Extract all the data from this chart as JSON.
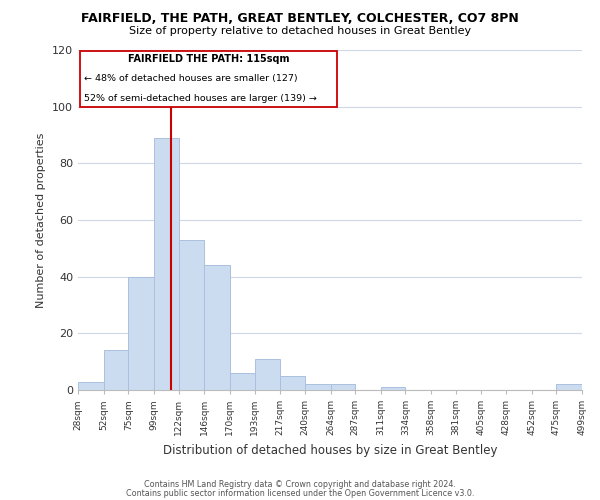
{
  "title1": "FAIRFIELD, THE PATH, GREAT BENTLEY, COLCHESTER, CO7 8PN",
  "title2": "Size of property relative to detached houses in Great Bentley",
  "xlabel": "Distribution of detached houses by size in Great Bentley",
  "ylabel": "Number of detached properties",
  "bin_edges": [
    28,
    52,
    75,
    99,
    122,
    146,
    170,
    193,
    217,
    240,
    264,
    287,
    311,
    334,
    358,
    381,
    405,
    428,
    452,
    475,
    499
  ],
  "bar_heights": [
    3,
    14,
    40,
    89,
    53,
    44,
    6,
    11,
    5,
    2,
    2,
    0,
    1,
    0,
    0,
    0,
    0,
    0,
    0,
    2
  ],
  "bar_color": "#ccdcf0",
  "bar_edge_color": "#aac0de",
  "vline_x": 115,
  "vline_color": "#cc0000",
  "annotation_title": "FAIRFIELD THE PATH: 115sqm",
  "annotation_line1": "← 48% of detached houses are smaller (127)",
  "annotation_line2": "52% of semi-detached houses are larger (139) →",
  "annotation_box_color": "#cc0000",
  "ylim": [
    0,
    120
  ],
  "yticks": [
    0,
    20,
    40,
    60,
    80,
    100,
    120
  ],
  "tick_labels": [
    "28sqm",
    "52sqm",
    "75sqm",
    "99sqm",
    "122sqm",
    "146sqm",
    "170sqm",
    "193sqm",
    "217sqm",
    "240sqm",
    "264sqm",
    "287sqm",
    "311sqm",
    "334sqm",
    "358sqm",
    "381sqm",
    "405sqm",
    "428sqm",
    "452sqm",
    "475sqm",
    "499sqm"
  ],
  "footnote1": "Contains HM Land Registry data © Crown copyright and database right 2024.",
  "footnote2": "Contains public sector information licensed under the Open Government Licence v3.0.",
  "background_color": "#ffffff",
  "grid_color": "#ccd8e8"
}
